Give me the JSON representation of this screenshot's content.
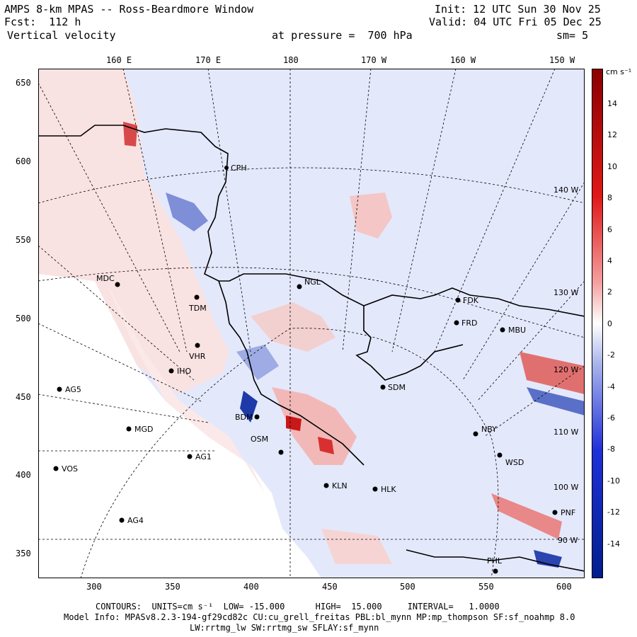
{
  "header": {
    "title": "AMPS 8-km MPAS -- Ross-Beardmore Window",
    "fcst_label": "Fcst:",
    "fcst_value": "112 h",
    "variable": "Vertical velocity",
    "init": "Init: 12 UTC Sun 30 Nov 25",
    "valid": "Valid: 04 UTC Fri 05 Dec 25",
    "pressure_label": "at pressure =",
    "pressure_value": "700 hPa",
    "smooth": "sm= 5"
  },
  "axes": {
    "top_ticks": [
      "160 E",
      "170 E",
      "180",
      "170 W",
      "160 W",
      "150 W"
    ],
    "bottom_ticks": [
      "300",
      "350",
      "400",
      "450",
      "500",
      "550",
      "600"
    ],
    "left_ticks": [
      "650",
      "600",
      "550",
      "500",
      "450",
      "400",
      "350"
    ],
    "inner_lon_labels": [
      "140 W",
      "130 W",
      "120 W",
      "110 W",
      "100 W",
      "90 W"
    ]
  },
  "colorbar": {
    "unit": "cm s⁻¹",
    "labels": [
      "14",
      "12",
      "10",
      "8",
      "6",
      "4",
      "2",
      "0",
      "-2",
      "-4",
      "-6",
      "-8",
      "-10",
      "-12",
      "-14"
    ],
    "low_color": "#001e8c",
    "high_color": "#8a0000",
    "mid_color": "#ffffff"
  },
  "stations": [
    {
      "code": "CPH"
    },
    {
      "code": "NGL"
    },
    {
      "code": "MDC"
    },
    {
      "code": "TDM"
    },
    {
      "code": "FDK"
    },
    {
      "code": "FRD"
    },
    {
      "code": "MBU"
    },
    {
      "code": "VHR"
    },
    {
      "code": "IHO"
    },
    {
      "code": "AG5"
    },
    {
      "code": "SDM"
    },
    {
      "code": "BDM"
    },
    {
      "code": "MGD"
    },
    {
      "code": "NBY"
    },
    {
      "code": "AG1"
    },
    {
      "code": "OSM"
    },
    {
      "code": "VOS"
    },
    {
      "code": "WSD"
    },
    {
      "code": "KLN"
    },
    {
      "code": "HLK"
    },
    {
      "code": "AG4"
    },
    {
      "code": "PNF"
    },
    {
      "code": "PHL"
    }
  ],
  "footer": {
    "contours": "CONTOURS:  UNITS=cm s⁻¹  LOW= -15.000      HIGH=  15.000     INTERVAL=   1.0000",
    "model1": "Model Info: MPASv8.2.3-194-gf29cd82c CU:cu_grell_freitas PBL:bl_mynn MP:mp_thompson SF:sf_noahmp 8.0",
    "model2": "LW:rrtmg_lw SW:rrtmg_sw SFLAY:sf_mynn"
  }
}
